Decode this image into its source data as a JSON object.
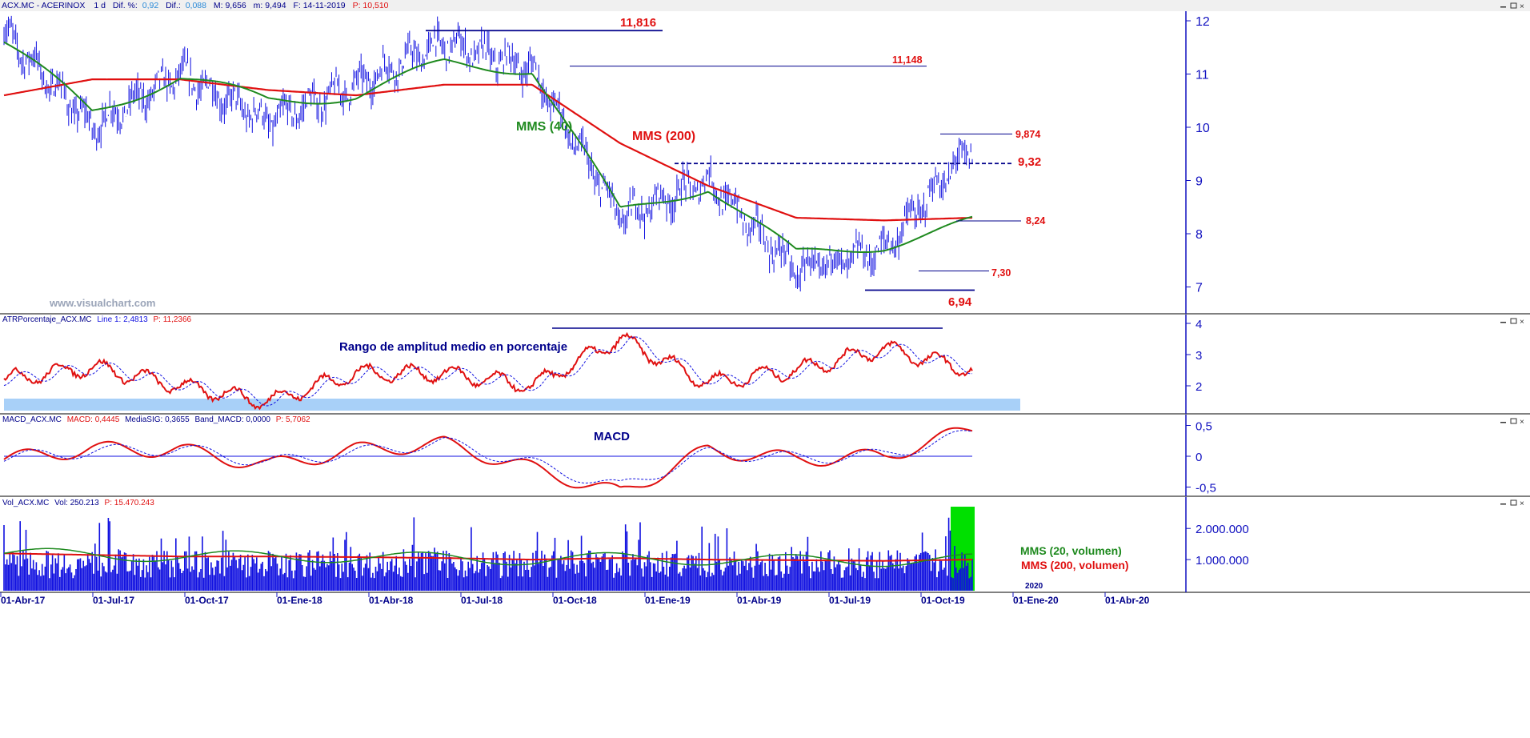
{
  "colors": {
    "price": "#1010e0",
    "ma40": "#1f8a1f",
    "ma200": "#e01010",
    "level_line": "#00008b",
    "axis": "#1010c0",
    "panel_header": "#00008b",
    "band": "#a8d0f8",
    "vol_highlight": "#00e000",
    "panel_border": "#000000"
  },
  "icons": [
    "window-minimize-icon",
    "window-restore-icon",
    "window-close-icon"
  ],
  "panels": {
    "price": {
      "header": {
        "symbol": "ACX.MC - ACERINOX",
        "timeframe": "1 d",
        "dif_pct_label": "Dif. %:",
        "dif_pct": "0,92",
        "dif_label": "Dif.:",
        "dif": "0,088",
        "max": "M: 9,656",
        "min": "m: 9,494",
        "date": "F: 14-11-2019",
        "price": "P: 10,510"
      },
      "watermark": "www.visualchart.com",
      "labels": {
        "ma40": "MMS (40)",
        "ma200": "MMS (200)"
      },
      "levels": [
        {
          "value": 11.816,
          "label": "11,816"
        },
        {
          "value": 11.148,
          "label": "11,148"
        },
        {
          "value": 9.874,
          "label": "9,874"
        },
        {
          "value": 9.32,
          "label": "9,32"
        },
        {
          "value": 8.24,
          "label": "8,24"
        },
        {
          "value": 7.3,
          "label": "7,30"
        },
        {
          "value": 6.94,
          "label": "6,94"
        }
      ],
      "y_ticks": [
        "12",
        "11",
        "10",
        "9",
        "8",
        "7"
      ]
    },
    "atr": {
      "header": {
        "name": "ATRPorcentaje_ACX.MC",
        "line1": "Line 1: 2,4813",
        "p": "P: 11,2366"
      },
      "title": "Rango de amplitud medio en porcentaje",
      "y_ticks": [
        "4",
        "3",
        "2"
      ]
    },
    "macd": {
      "header": {
        "name": "MACD_ACX.MC",
        "macd": "MACD: 0,4445",
        "signal": "MediaSIG: 0,3655",
        "band": "Band_MACD: 0,0000",
        "p": "P: 5,7062"
      },
      "title": "MACD",
      "y_ticks": [
        "0,5",
        "0",
        "-0,5"
      ]
    },
    "volume": {
      "header": {
        "name": "Vol_ACX.MC",
        "vol": "Vol: 250.213",
        "p": "P: 15.470.243"
      },
      "labels": {
        "ma20": "MMS (20, volumen)",
        "ma200": "MMS (200, volumen)"
      },
      "y_ticks": [
        "2.000.000",
        "1.000.000"
      ]
    }
  },
  "x_axis": {
    "labels": [
      "01-Abr-17",
      "01-Jul-17",
      "01-Oct-17",
      "01-Ene-18",
      "01-Abr-18",
      "01-Jul-18",
      "01-Oct-18",
      "01-Ene-19",
      "01-Abr-19",
      "01-Jul-19",
      "01-Oct-19",
      "01-Ene-20",
      "01-Abr-20"
    ],
    "year_label": "2020"
  },
  "chart_data": {
    "type": "bar",
    "title": "ACX.MC - ACERINOX",
    "dates": [
      "01-Abr-17",
      "01-Jul-17",
      "01-Oct-17",
      "01-Ene-18",
      "01-Abr-18",
      "01-Jul-18",
      "01-Oct-18",
      "01-Ene-19",
      "01-Abr-19",
      "01-Jul-19",
      "01-Oct-19",
      "14-11-2019"
    ],
    "close": [
      11.8,
      10.0,
      11.0,
      10.1,
      10.8,
      11.6,
      11.1,
      8.3,
      9.0,
      7.3,
      7.7,
      9.65
    ],
    "ma40": [
      11.6,
      10.3,
      10.95,
      10.5,
      10.6,
      11.2,
      11.1,
      8.4,
      8.9,
      7.6,
      7.8,
      8.2
    ],
    "ma200": [
      10.6,
      10.9,
      10.9,
      10.7,
      10.6,
      10.8,
      10.8,
      9.7,
      8.9,
      8.3,
      8.25,
      8.3
    ],
    "ylim": [
      6.5,
      12.3
    ],
    "levels": [
      11.816,
      11.148,
      9.874,
      9.32,
      8.24,
      7.3,
      6.94
    ],
    "atr_pct": [
      2.2,
      2.6,
      2.0,
      1.5,
      2.4,
      2.4,
      2.0,
      3.5,
      2.1,
      2.5,
      3.2,
      2.5
    ],
    "atr_ylim": [
      1.2,
      4.0
    ],
    "macd": [
      -0.05,
      0.12,
      0.1,
      -0.15,
      0.1,
      0.2,
      -0.2,
      -0.6,
      0.1,
      -0.05,
      0.0,
      0.44
    ],
    "macd_signal": [
      -0.03,
      0.08,
      0.12,
      -0.1,
      0.06,
      0.22,
      -0.12,
      -0.5,
      0.05,
      -0.03,
      0.02,
      0.37
    ],
    "macd_ylim": [
      -0.7,
      0.7
    ],
    "volume_ma200": [
      1200000,
      1150000,
      1100000,
      1100000,
      1080000,
      1050000,
      1000000,
      1050000,
      1000000,
      980000,
      960000,
      1000000
    ],
    "volume_last": 250213,
    "volume_ylim": [
      0,
      2700000
    ]
  }
}
